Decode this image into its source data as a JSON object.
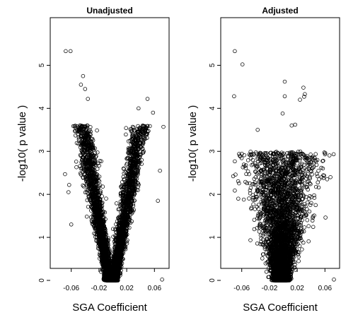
{
  "chart_data": [
    {
      "type": "scatter",
      "title": "Unadjusted",
      "xlabel": "SGA Coefficient",
      "ylabel": "-log10( p value )",
      "xlim": [
        -0.075,
        0.075
      ],
      "ylim": [
        0,
        5.5
      ],
      "x_ticks": [
        -0.06,
        -0.02,
        0.02,
        0.06
      ],
      "x_tick_labels": [
        "-0.06",
        "-0.02",
        "0.02",
        "0.06"
      ],
      "y_ticks": [
        0,
        1,
        2,
        3,
        4,
        5
      ],
      "y_tick_labels": [
        "0",
        "1",
        "2",
        "3",
        "4",
        "5"
      ],
      "grid": false,
      "marker": "open-circle",
      "shape": "v",
      "n_bulk": 5000,
      "extreme_points": [
        {
          "x": -0.068,
          "y": 5.33
        },
        {
          "x": -0.061,
          "y": 5.33
        },
        {
          "x": -0.043,
          "y": 4.75
        },
        {
          "x": -0.046,
          "y": 4.55
        },
        {
          "x": -0.04,
          "y": 4.45
        },
        {
          "x": -0.036,
          "y": 4.22
        },
        {
          "x": 0.05,
          "y": 4.22
        },
        {
          "x": 0.037,
          "y": 4.0
        },
        {
          "x": 0.058,
          "y": 3.9
        },
        {
          "x": 0.073,
          "y": 3.57
        },
        {
          "x": -0.069,
          "y": 2.47
        },
        {
          "x": -0.063,
          "y": 2.22
        },
        {
          "x": -0.064,
          "y": 2.05
        },
        {
          "x": -0.06,
          "y": 1.3
        },
        {
          "x": 0.068,
          "y": 2.55
        },
        {
          "x": 0.065,
          "y": 1.85
        },
        {
          "x": 0.071,
          "y": 0.02
        }
      ]
    },
    {
      "type": "scatter",
      "title": "Adjusted",
      "xlabel": "SGA Coefficient",
      "ylabel": "-log10( p value )",
      "xlim": [
        -0.075,
        0.075
      ],
      "ylim": [
        0,
        5.5
      ],
      "x_ticks": [
        -0.06,
        -0.02,
        0.02,
        0.06
      ],
      "x_tick_labels": [
        "-0.06",
        "-0.02",
        "0.02",
        "0.06"
      ],
      "y_ticks": [
        0,
        1,
        2,
        3,
        4,
        5
      ],
      "y_tick_labels": [
        "0",
        "1",
        "2",
        "3",
        "4",
        "5"
      ],
      "grid": false,
      "marker": "open-circle",
      "shape": "funnel",
      "n_bulk": 5000,
      "extreme_points": [
        {
          "x": -0.07,
          "y": 5.33
        },
        {
          "x": -0.071,
          "y": 4.28
        },
        {
          "x": -0.059,
          "y": 5.02
        },
        {
          "x": -0.037,
          "y": 3.5
        },
        {
          "x": 0.002,
          "y": 4.62
        },
        {
          "x": 0.002,
          "y": 4.28
        },
        {
          "x": 0.024,
          "y": 4.2
        },
        {
          "x": 0.029,
          "y": 4.48
        },
        {
          "x": 0.031,
          "y": 4.33
        },
        {
          "x": 0.03,
          "y": 4.27
        },
        {
          "x": -0.001,
          "y": 3.88
        },
        {
          "x": 0.017,
          "y": 3.62
        },
        {
          "x": 0.012,
          "y": 3.6
        },
        {
          "x": -0.062,
          "y": 2.88
        },
        {
          "x": -0.065,
          "y": 1.9
        },
        {
          "x": 0.045,
          "y": 2.85
        },
        {
          "x": 0.057,
          "y": 2.6
        },
        {
          "x": 0.068,
          "y": 2.4
        },
        {
          "x": 0.073,
          "y": 0.02
        }
      ]
    }
  ]
}
